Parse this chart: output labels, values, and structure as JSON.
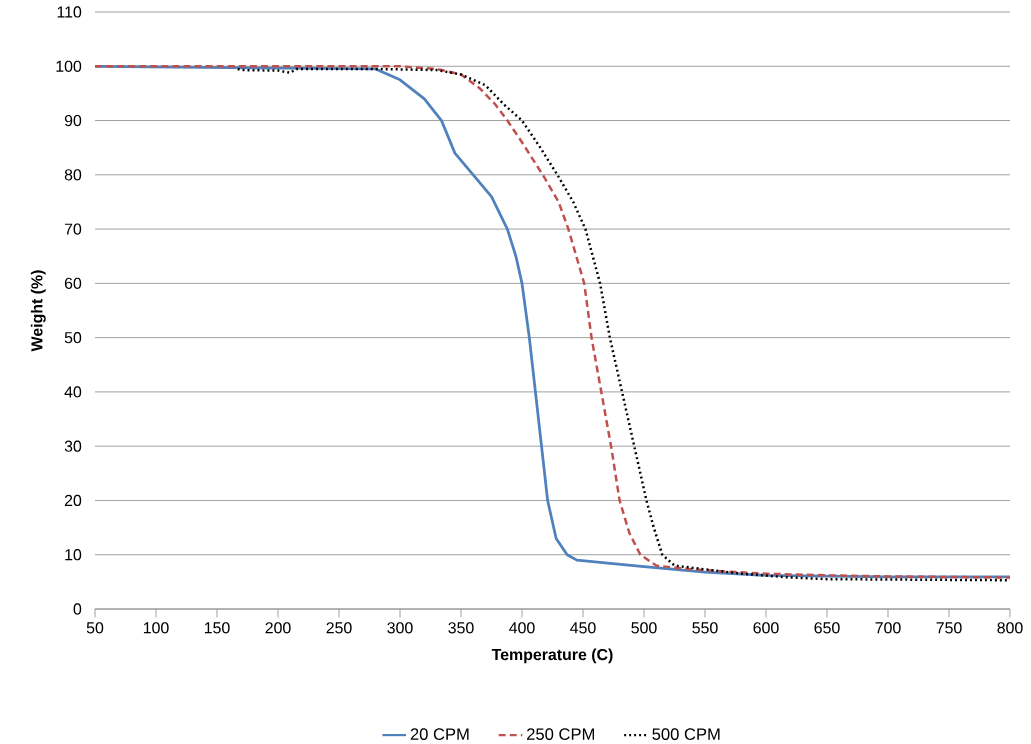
{
  "chart_data": {
    "type": "line",
    "xlabel": "Temperature (C)",
    "ylabel": "Weight (%)",
    "xlim": [
      50,
      800
    ],
    "ylim": [
      0,
      110
    ],
    "xticks": [
      50,
      100,
      150,
      200,
      250,
      300,
      350,
      400,
      450,
      500,
      550,
      600,
      650,
      700,
      750,
      800
    ],
    "yticks": [
      0,
      10,
      20,
      30,
      40,
      50,
      60,
      70,
      80,
      90,
      100,
      110
    ],
    "grid": "y",
    "legend": "bottom",
    "marker": "none",
    "series": [
      {
        "name": "20 CPM",
        "color": "#4f81bd",
        "line_style": "solid",
        "x": [
          50,
          280,
          300,
          320,
          334,
          345,
          360,
          375,
          388,
          395,
          400,
          406,
          411,
          416,
          421,
          428,
          437,
          445,
          500,
          550,
          600,
          700,
          800
        ],
        "values": [
          100,
          99.5,
          97.5,
          94,
          90,
          84,
          80,
          76,
          70,
          65,
          60,
          50,
          40,
          30,
          20,
          13,
          10,
          9,
          7.8,
          6.8,
          6.2,
          5.9,
          5.9
        ]
      },
      {
        "name": "250 CPM",
        "color": "#c0504d",
        "line_style": "dashed",
        "x": [
          50,
          300,
          330,
          350,
          365,
          378,
          388,
          400,
          417,
          430,
          438,
          451,
          457,
          465,
          473,
          480,
          488,
          497,
          510,
          530,
          560,
          600,
          650,
          700,
          800
        ],
        "values": [
          100,
          100,
          99.5,
          98.5,
          96,
          93,
          90,
          86,
          80,
          75,
          70,
          60,
          50,
          40,
          30,
          20,
          14,
          10,
          8,
          7.5,
          7,
          6.5,
          6.2,
          6,
          5.8
        ]
      },
      {
        "name": "500 CPM",
        "color": "#000000",
        "line_style": "dotted",
        "x": [
          167,
          170,
          200,
          210,
          215,
          280,
          330,
          350,
          370,
          385,
          400,
          415,
          429,
          442,
          452,
          464,
          472,
          482,
          492,
          502,
          508,
          515,
          525,
          550,
          580,
          620,
          650,
          800
        ],
        "values": [
          99.5,
          99.3,
          99.2,
          98.8,
          99.5,
          99.5,
          99.3,
          98.5,
          96.5,
          93,
          90,
          85,
          80,
          75,
          70,
          60,
          50,
          40,
          30,
          20,
          15,
          10,
          8,
          7.3,
          6.5,
          5.8,
          5.5,
          5.3
        ]
      }
    ]
  }
}
